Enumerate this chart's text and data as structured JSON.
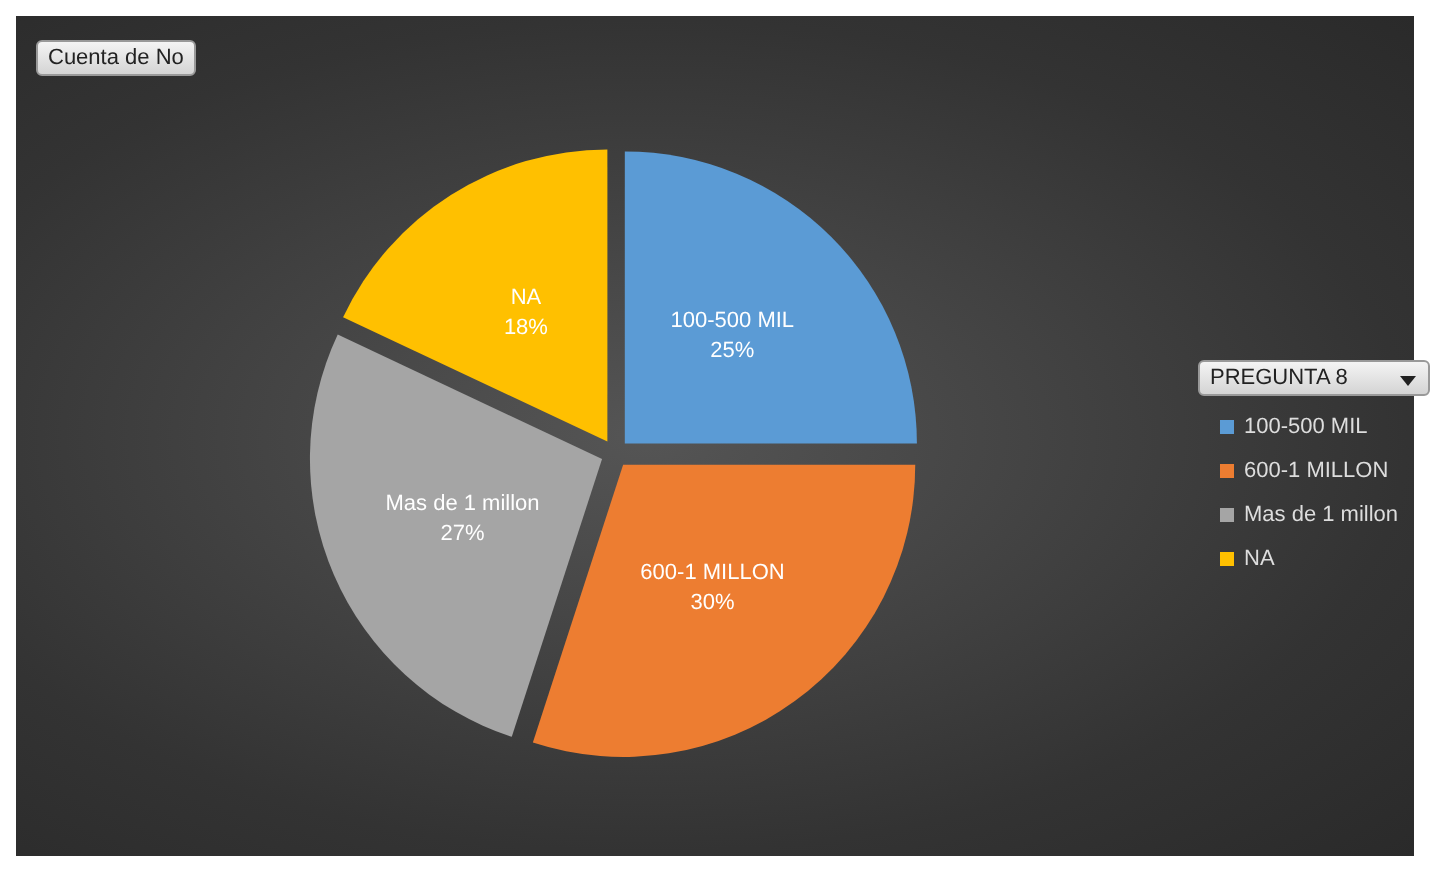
{
  "chart_data": {
    "type": "pie",
    "categories": [
      "100-500 MIL",
      "600-1 MILLON",
      "Mas de 1 millon",
      "NA"
    ],
    "values": [
      25,
      30,
      27,
      18
    ],
    "colors": [
      "#5b9bd5",
      "#ed7d31",
      "#a5a5a5",
      "#ffc000"
    ],
    "value_labels": [
      "25%",
      "30%",
      "27%",
      "18%"
    ],
    "legend": "right",
    "legend_title": "PREGUNTA 8",
    "annotations": [
      "Cuenta de No"
    ]
  }
}
